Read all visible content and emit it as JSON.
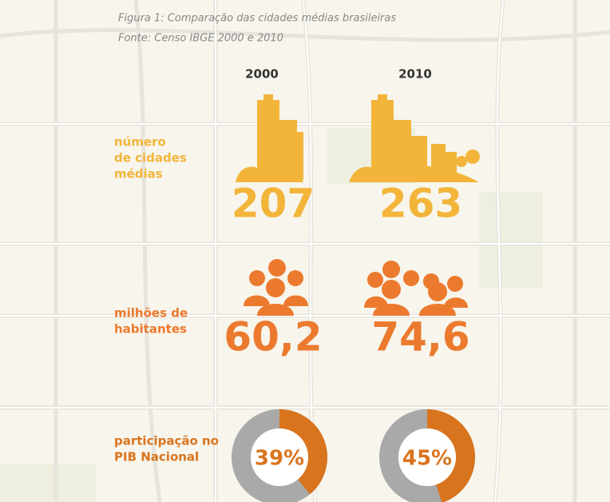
{
  "caption": {
    "title": "Figura 1: Comparação das cidades médias  brasileiras",
    "source": "Fonte: Censo IBGE 2000 e 2010"
  },
  "years": [
    "2000",
    "2010"
  ],
  "rows": [
    {
      "label": [
        "número",
        "de cidades",
        "médias"
      ],
      "values": [
        207,
        263
      ],
      "color": "#f2b53a"
    },
    {
      "label": [
        "milhões de",
        "habitantes"
      ],
      "values": [
        60.2,
        74.6
      ],
      "value_labels": [
        "60,2",
        "74,6"
      ],
      "color": "#ec7a2e"
    },
    {
      "label": [
        "participação no",
        "PIB Nacional"
      ],
      "values": [
        39,
        45
      ],
      "value_labels": [
        "39%",
        "45%"
      ],
      "color": "#d9741e"
    }
  ]
}
